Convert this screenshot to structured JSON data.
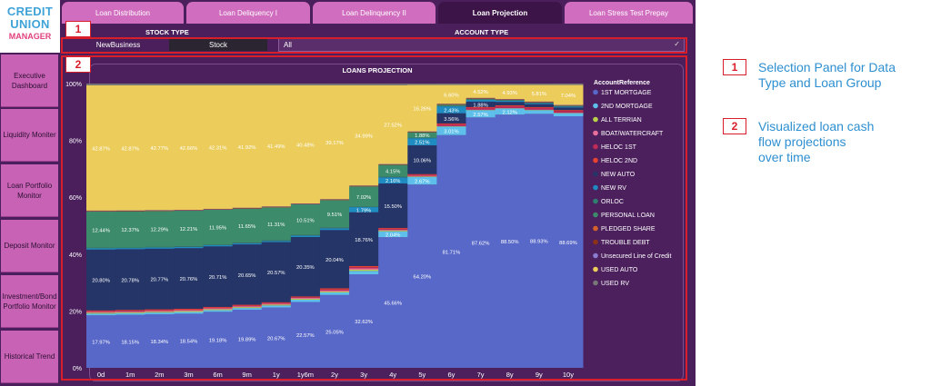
{
  "logo": {
    "line1": "CREDIT",
    "line2": "UNION",
    "line3": "MANAGER"
  },
  "tabs": [
    "Loan Distribution",
    "Loan Deliquency I",
    "Loan Delinquency II",
    "Loan Projection",
    "Loan Stress Test Prepay"
  ],
  "active_tab": "Loan Projection",
  "sidebar": {
    "items": [
      "Executive Dashboard",
      "Liquidity Moniter",
      "Loan Portfolio Monitor",
      "Deposit Monitor",
      "Investment/Bond Portfolio Monitor",
      "Historical Trend"
    ]
  },
  "filters": {
    "stock_type_label": "STOCK TYPE",
    "stock_options": [
      "NewBusiness",
      "Stock"
    ],
    "account_type_label": "ACCOUNT TYPE",
    "account_value": "All"
  },
  "markers": {
    "one": "1",
    "two": "2"
  },
  "annotations": {
    "a1": {
      "num": "1",
      "lines": [
        "Selection Panel for Data",
        "Type and Loan Group"
      ]
    },
    "a2": {
      "num": "2",
      "lines": [
        "Visualized loan cash",
        "flow projections",
        "over time"
      ]
    }
  },
  "colors": {
    "dash_bg": "#4a1f5c",
    "tab": "#d16dbe",
    "tab_active": "#3d1448",
    "nav": "#c862b4",
    "highlight": "#d81e2a",
    "annotation_text": "#2e8fd0"
  },
  "chart_data": {
    "type": "bar",
    "stacked": true,
    "title": "LOANS PROJECTION",
    "legend_title": "AccountReference",
    "legend_position": "right",
    "categories": [
      "0d",
      "1m",
      "2m",
      "3m",
      "6m",
      "9m",
      "1y",
      "1y6m",
      "2y",
      "3y",
      "4y",
      "5y",
      "6y",
      "7y",
      "8y",
      "9y",
      "10y"
    ],
    "ylim": [
      0,
      100
    ],
    "y_ticks": [
      "0%",
      "20%",
      "40%",
      "60%",
      "80%",
      "100%"
    ],
    "series": [
      {
        "name": "1ST MORTGAGE",
        "color": "#5868c8",
        "values": [
          17.97,
          18.15,
          18.34,
          18.54,
          19.18,
          19.89,
          20.67,
          22.57,
          25.05,
          32.62,
          45.66,
          64.2,
          81.71,
          87.62,
          88.5,
          88.93,
          88.69
        ],
        "labels": [
          "17.97%",
          "18.15%",
          "18.34%",
          "18.54%",
          "19.18%",
          "19.89%",
          "20.67%",
          "22.57%",
          "25.05%",
          "32.62%",
          "45.66%",
          "64.20%",
          "81.71%",
          "87.62%",
          "88.50%",
          "88.93%",
          "88.69%"
        ]
      },
      {
        "name": "2ND MORTGAGE",
        "color": "#5ec0ea",
        "values": [
          0.6,
          0.6,
          0.6,
          0.6,
          0.6,
          0.6,
          0.7,
          0.8,
          0.9,
          1.2,
          2.04,
          2.67,
          3.01,
          2.57,
          2.12,
          1.3,
          1.1
        ],
        "labels": [
          "",
          "",
          "",
          "",
          "",
          "",
          "",
          "",
          "",
          "",
          "2.04%",
          "2.67%",
          "3.01%",
          "2.57%",
          "2.12%",
          "",
          ""
        ]
      },
      {
        "name": "ALL TERRIAN",
        "color": "#b9d24a",
        "values": [
          0.3,
          0.3,
          0.3,
          0.3,
          0.3,
          0.3,
          0.3,
          0.3,
          0.3,
          0.4,
          0.3,
          0.2,
          0.1,
          0.1,
          0.1,
          0.1,
          0.1
        ],
        "labels": []
      },
      {
        "name": "BOAT/WATERCRAFT",
        "color": "#e86f9c",
        "values": [
          0.3,
          0.3,
          0.3,
          0.3,
          0.3,
          0.3,
          0.3,
          0.3,
          0.4,
          0.5,
          0.3,
          0.2,
          0.1,
          0.1,
          0.1,
          0.1,
          0.1
        ],
        "labels": []
      },
      {
        "name": "HELOC 1ST",
        "color": "#bd2b56",
        "values": [
          0.2,
          0.2,
          0.2,
          0.2,
          0.2,
          0.2,
          0.2,
          0.2,
          0.3,
          0.4,
          0.3,
          0.3,
          0.6,
          0.6,
          0.6,
          0.6,
          0.6
        ],
        "labels": []
      },
      {
        "name": "HELOC 2ND",
        "color": "#e84330",
        "values": [
          0.3,
          0.3,
          0.3,
          0.3,
          0.3,
          0.3,
          0.3,
          0.3,
          0.4,
          0.4,
          0.3,
          0.3,
          0.3,
          0.3,
          0.3,
          0.3,
          0.3
        ],
        "labels": []
      },
      {
        "name": "NEW AUTO",
        "color": "#253568",
        "values": [
          20.8,
          20.78,
          20.77,
          20.76,
          20.71,
          20.65,
          20.57,
          20.35,
          20.04,
          18.76,
          15.5,
          10.06,
          3.56,
          1.88,
          1.2,
          1.0,
          0.9
        ],
        "labels": [
          "20.80%",
          "20.78%",
          "20.77%",
          "20.76%",
          "20.71%",
          "20.65%",
          "20.57%",
          "20.35%",
          "20.04%",
          "18.76%",
          "15.50%",
          "10.06%",
          "3.56%",
          "1.88%",
          "",
          "",
          ""
        ]
      },
      {
        "name": "NEW RV",
        "color": "#1e8cc0",
        "values": [
          0.4,
          0.4,
          0.4,
          0.4,
          0.4,
          0.4,
          0.4,
          0.5,
          0.6,
          1.79,
          2.16,
          2.51,
          2.43,
          0.6,
          0.4,
          0.3,
          0.3
        ],
        "labels": [
          "",
          "",
          "",
          "",
          "",
          "",
          "",
          "",
          "",
          "1.79%",
          "2.16%",
          "2.51%",
          "2.43%",
          "",
          "",
          "",
          ""
        ]
      },
      {
        "name": "ORLOC",
        "color": "#2f7f70",
        "values": [
          0.2,
          0.2,
          0.2,
          0.2,
          0.2,
          0.2,
          0.2,
          0.2,
          0.2,
          0.2,
          0.2,
          0.2,
          0.1,
          0.1,
          0.1,
          0.1,
          0.1
        ],
        "labels": []
      },
      {
        "name": "PERSONAL LOAN",
        "color": "#3c8b6a",
        "values": [
          12.44,
          12.37,
          12.29,
          12.21,
          11.95,
          11.65,
          11.31,
          10.51,
          9.51,
          7.02,
          4.15,
          1.88,
          0.5,
          0.3,
          0.2,
          0.2,
          0.2
        ],
        "labels": [
          "12.44%",
          "12.37%",
          "12.29%",
          "12.21%",
          "11.95%",
          "11.65%",
          "11.31%",
          "10.51%",
          "9.51%",
          "7.02%",
          "4.15%",
          "1.88%",
          "",
          "",
          "",
          "",
          ""
        ]
      },
      {
        "name": "PLEDGED SHARE",
        "color": "#d5622a",
        "values": [
          0.1,
          0.1,
          0.1,
          0.1,
          0.1,
          0.1,
          0.1,
          0.1,
          0.1,
          0.1,
          0.1,
          0.1,
          0.1,
          0.1,
          0.1,
          0.1,
          0.1
        ],
        "labels": []
      },
      {
        "name": "TROUBLE DEBT",
        "color": "#8c3216",
        "values": [
          0.1,
          0.1,
          0.1,
          0.1,
          0.1,
          0.1,
          0.1,
          0.1,
          0.1,
          0.1,
          0.1,
          0.1,
          0.1,
          0.1,
          0.1,
          0.1,
          0.1
        ],
        "labels": []
      },
      {
        "name": "Unsecured Line of Credit",
        "color": "#8a7bd0",
        "values": [
          0.1,
          0.1,
          0.1,
          0.1,
          0.1,
          0.1,
          0.1,
          0.1,
          0.1,
          0.1,
          0.1,
          0.1,
          0.1,
          0.1,
          0.1,
          0.1,
          0.1
        ],
        "labels": []
      },
      {
        "name": "USED AUTO",
        "color": "#eccd5c",
        "values": [
          42.87,
          42.87,
          42.77,
          42.66,
          42.31,
          41.92,
          41.49,
          40.48,
          39.17,
          34.99,
          27.52,
          16.26,
          6.6,
          4.52,
          4.93,
          5.81,
          7.04
        ],
        "labels": [
          "42.87%",
          "42.87%",
          "42.77%",
          "42.66%",
          "42.31%",
          "41.92%",
          "41.49%",
          "40.48%",
          "39.17%",
          "34.99%",
          "27.52%",
          "16.26%",
          "6.60%",
          "4.52%",
          "4.93%",
          "5.81%",
          "7.04%"
        ]
      },
      {
        "name": "USED RV",
        "color": "#777777",
        "values": [
          0.6,
          0.6,
          0.6,
          0.6,
          0.6,
          0.6,
          0.6,
          0.6,
          0.6,
          0.6,
          0.6,
          0.5,
          0.5,
          0.5,
          0.5,
          0.5,
          0.5
        ],
        "labels": []
      }
    ]
  }
}
